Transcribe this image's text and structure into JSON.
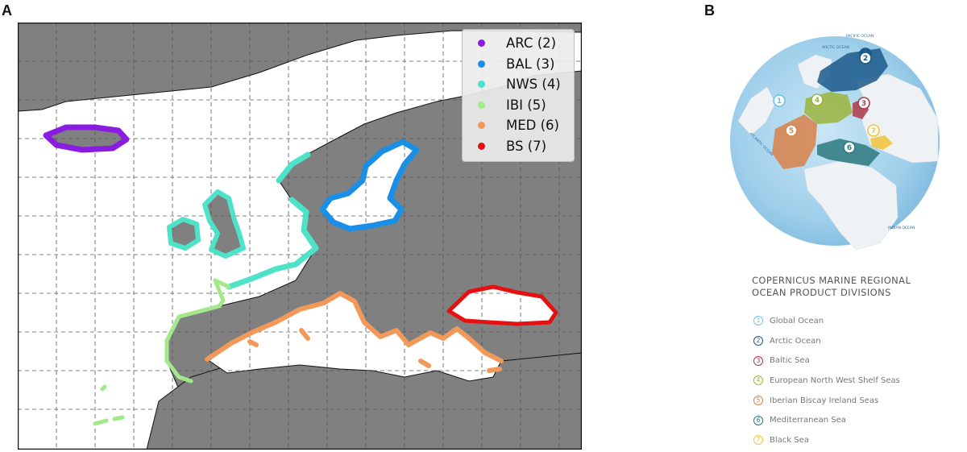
{
  "panels": {
    "a_label": "A",
    "b_label": "B"
  },
  "map_a": {
    "legend": [
      {
        "label": "ARC (2)",
        "color": "#8a1be0"
      },
      {
        "label": "BAL (3)",
        "color": "#1a8fe6"
      },
      {
        "label": "NWS (4)",
        "color": "#4ee3c8"
      },
      {
        "label": "IBI (5)",
        "color": "#a4e88c"
      },
      {
        "label": "MED (6)",
        "color": "#f2995a"
      },
      {
        "label": "BS (7)",
        "color": "#e61010"
      }
    ],
    "land_color": "#808080",
    "sea_color": "#ffffff",
    "grid": "dashed"
  },
  "globe_b": {
    "ocean_labels": [
      "PACIFIC OCEAN",
      "ARCTIC OCEAN",
      "ATLANTIC OCEAN",
      "INDIAN OCEAN"
    ],
    "region_markers": [
      {
        "number": "1",
        "color": "#6fc3e8"
      },
      {
        "number": "2",
        "color": "#1c5a8c"
      },
      {
        "number": "3",
        "color": "#b03a48"
      },
      {
        "number": "4",
        "color": "#9bb53c"
      },
      {
        "number": "5",
        "color": "#d9824a"
      },
      {
        "number": "6",
        "color": "#2e7a80"
      },
      {
        "number": "7",
        "color": "#f0c53a"
      }
    ]
  },
  "divisions": {
    "title": "COPERNICUS MARINE REGIONAL\nOCEAN PRODUCT DIVISIONS",
    "items": [
      {
        "number": "1",
        "label": "Global Ocean",
        "color": "#6fc3e8"
      },
      {
        "number": "2",
        "label": "Arctic Ocean",
        "color": "#1c5a8c"
      },
      {
        "number": "3",
        "label": "Baltic Sea",
        "color": "#b03a48"
      },
      {
        "number": "4",
        "label": "European North West Shelf Seas",
        "color": "#9bb53c"
      },
      {
        "number": "5",
        "label": "Iberian Biscay Ireland Seas",
        "color": "#d9824a"
      },
      {
        "number": "6",
        "label": "Mediterranean Sea",
        "color": "#2e7a80"
      },
      {
        "number": "7",
        "label": "Black Sea",
        "color": "#f0c53a"
      }
    ]
  }
}
